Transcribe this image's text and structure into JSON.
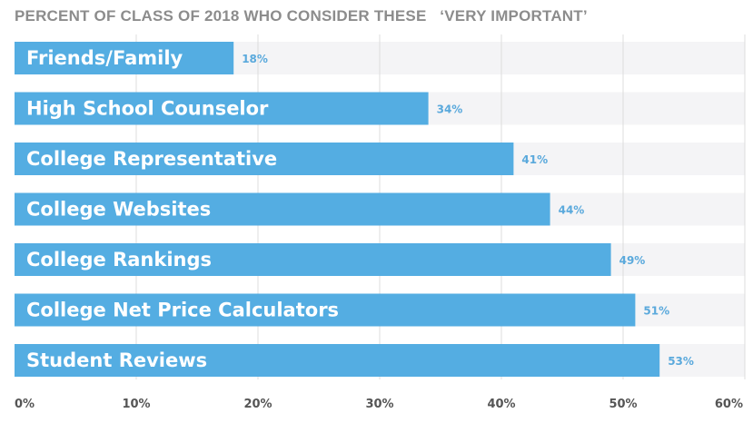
{
  "chart_data": {
    "type": "bar",
    "orientation": "horizontal",
    "title": "PERCENT OF CLASS OF 2018 WHO CONSIDER THESE   ‘VERY IMPORTANT’",
    "categories": [
      "Friends/Family",
      "High School Counselor",
      "College Representative",
      "College Websites",
      "College Rankings",
      "College Net Price Calculators",
      "Student Reviews"
    ],
    "values": [
      18,
      34,
      41,
      44,
      49,
      51,
      53
    ],
    "value_labels": [
      "18%",
      "34%",
      "41%",
      "44%",
      "49%",
      "51%",
      "53%"
    ],
    "xlim": [
      0,
      60
    ],
    "x_ticks": [
      "0%",
      "10%",
      "20%",
      "30%",
      "40%",
      "50%",
      "60%"
    ],
    "xlabel": "",
    "ylabel": "",
    "grid": true,
    "colors": {
      "bar": "#54ade2",
      "track": "#f4f4f6",
      "grid": "#dcdcdc",
      "value_text": "#5aa9dc",
      "title_text": "#8c8c8c",
      "tick_text": "#555555"
    }
  }
}
